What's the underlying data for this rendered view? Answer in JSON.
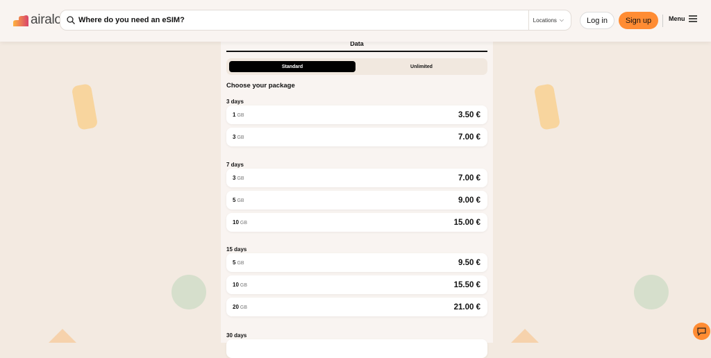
{
  "header": {
    "logo": "airalo",
    "search_placeholder": "Where do you need an eSIM?",
    "locations": "Locations",
    "login": "Log in",
    "signup": "Sign up",
    "menu": "Menu"
  },
  "panel": {
    "tab": "Data",
    "segments": [
      "Standard",
      "Unlimited"
    ],
    "choose": "Choose your package",
    "groups": [
      {
        "label": "3 days",
        "items": [
          {
            "amount": "1",
            "unit": "GB",
            "price": "3.50 €"
          },
          {
            "amount": "3",
            "unit": "GB",
            "price": "7.00 €"
          }
        ]
      },
      {
        "label": "7 days",
        "items": [
          {
            "amount": "3",
            "unit": "GB",
            "price": "7.00 €"
          },
          {
            "amount": "5",
            "unit": "GB",
            "price": "9.00 €"
          },
          {
            "amount": "10",
            "unit": "GB",
            "price": "15.00 €"
          }
        ]
      },
      {
        "label": "15 days",
        "items": [
          {
            "amount": "5",
            "unit": "GB",
            "price": "9.50 €"
          },
          {
            "amount": "10",
            "unit": "GB",
            "price": "15.50 €"
          },
          {
            "amount": "20",
            "unit": "GB",
            "price": "21.00 €"
          }
        ]
      },
      {
        "label": "30 days",
        "items": []
      }
    ]
  },
  "colors": {
    "accent": "#ff8c33",
    "background": "#f3eae1"
  }
}
